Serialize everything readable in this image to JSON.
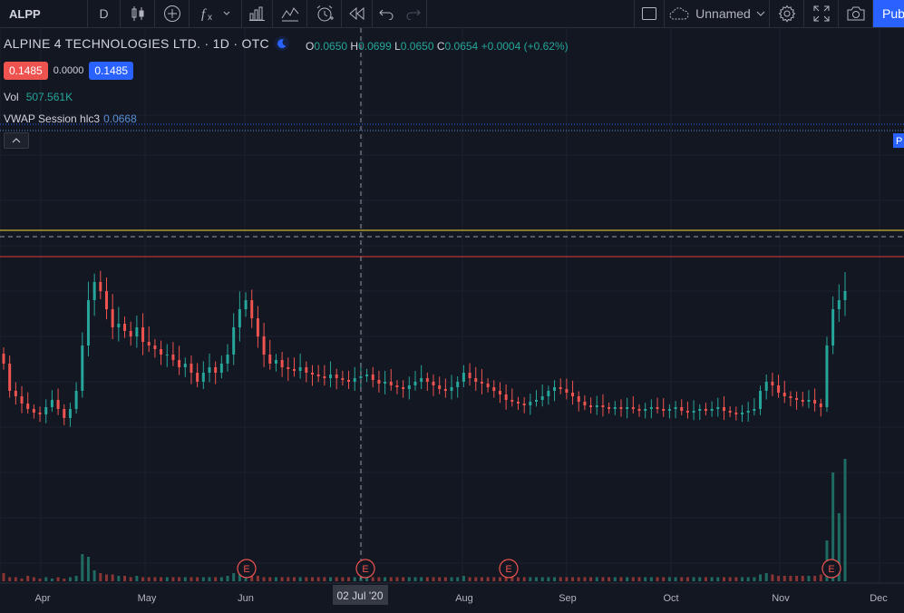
{
  "toolbar": {
    "symbol": "ALPP",
    "interval": "D",
    "layout_name": "Unnamed",
    "publish_label": "Pub"
  },
  "legend": {
    "title": "ALPINE 4 TECHNOLOGIES LTD. · 1D · OTC",
    "ohlc": {
      "o_label": "O",
      "o": "0.0650",
      "h_label": "H",
      "h": "0.0699",
      "l_label": "L",
      "l": "0.0650",
      "c_label": "C",
      "c": "0.0654",
      "change": "+0.0004 (+0.62%)"
    },
    "bid": "0.1485",
    "spread": "0.0000",
    "ask": "0.1485"
  },
  "indicators": {
    "vol_label": "Vol",
    "vol_value": "507.561K",
    "vwap_label": "VWAP Session hlc3",
    "vwap_value": "0.0668"
  },
  "right_badge": "P",
  "crosshair_date": "02 Jul '20",
  "earnings_marker": "E",
  "colors": {
    "up": "#26a69a",
    "down": "#ef5350",
    "yellow_line": "#f7d82f",
    "red_line": "#e53935",
    "accent": "#2962ff"
  },
  "chart_data": {
    "type": "candlestick",
    "x_ticks": [
      "Apr",
      "May",
      "Jun",
      "Aug",
      "Sep",
      "Oct",
      "Nov",
      "Dec"
    ],
    "earnings_dates": [
      "Jun",
      "02 Jul '20",
      "Aug",
      "Nov"
    ],
    "close": [
      0.11,
      0.095,
      0.092,
      0.088,
      0.085,
      0.083,
      0.082,
      0.086,
      0.09,
      0.085,
      0.08,
      0.085,
      0.095,
      0.12,
      0.145,
      0.155,
      0.15,
      0.14,
      0.13,
      0.132,
      0.128,
      0.125,
      0.13,
      0.122,
      0.12,
      0.118,
      0.115,
      0.115,
      0.112,
      0.108,
      0.11,
      0.105,
      0.1,
      0.105,
      0.108,
      0.105,
      0.11,
      0.115,
      0.13,
      0.14,
      0.145,
      0.135,
      0.125,
      0.115,
      0.11,
      0.112,
      0.108,
      0.107,
      0.106,
      0.108,
      0.105,
      0.104,
      0.103,
      0.102,
      0.104,
      0.102,
      0.101,
      0.1,
      0.102,
      0.103,
      0.104,
      0.101,
      0.099,
      0.1,
      0.098,
      0.097,
      0.096,
      0.098,
      0.1,
      0.102,
      0.1,
      0.098,
      0.096,
      0.095,
      0.097,
      0.1,
      0.105,
      0.102,
      0.1,
      0.099,
      0.097,
      0.095,
      0.093,
      0.09,
      0.089,
      0.088,
      0.087,
      0.089,
      0.09,
      0.092,
      0.095,
      0.097,
      0.096,
      0.094,
      0.092,
      0.089,
      0.087,
      0.086,
      0.087,
      0.086,
      0.085,
      0.086,
      0.085,
      0.086,
      0.085,
      0.084,
      0.085,
      0.086,
      0.085,
      0.084,
      0.085,
      0.086,
      0.084,
      0.083,
      0.084,
      0.085,
      0.084,
      0.085,
      0.086,
      0.084,
      0.083,
      0.082,
      0.083,
      0.084,
      0.085,
      0.095,
      0.1,
      0.098,
      0.094,
      0.092,
      0.091,
      0.09,
      0.089,
      0.09,
      0.088,
      0.086,
      0.12,
      0.14,
      0.145,
      0.15
    ],
    "volume": [
      6,
      3,
      3,
      2,
      4,
      3,
      2,
      3,
      2,
      3,
      2,
      3,
      4,
      20,
      18,
      8,
      6,
      5,
      5,
      4,
      4,
      3,
      4,
      3,
      3,
      3,
      3,
      3,
      3,
      3,
      3,
      3,
      3,
      3,
      3,
      3,
      3,
      4,
      6,
      8,
      7,
      5,
      4,
      3,
      3,
      3,
      3,
      3,
      3,
      3,
      3,
      3,
      3,
      3,
      3,
      3,
      3,
      3,
      3,
      3,
      3,
      3,
      3,
      3,
      3,
      3,
      3,
      3,
      3,
      3,
      3,
      3,
      3,
      3,
      3,
      3,
      4,
      3,
      3,
      3,
      3,
      3,
      3,
      3,
      3,
      3,
      3,
      3,
      3,
      3,
      3,
      3,
      3,
      3,
      3,
      3,
      3,
      3,
      3,
      3,
      3,
      3,
      3,
      3,
      3,
      3,
      3,
      3,
      3,
      3,
      3,
      3,
      3,
      3,
      3,
      3,
      3,
      3,
      3,
      3,
      3,
      3,
      3,
      3,
      3,
      5,
      6,
      5,
      4,
      4,
      4,
      4,
      4,
      4,
      4,
      5,
      30,
      80,
      50,
      90
    ]
  }
}
